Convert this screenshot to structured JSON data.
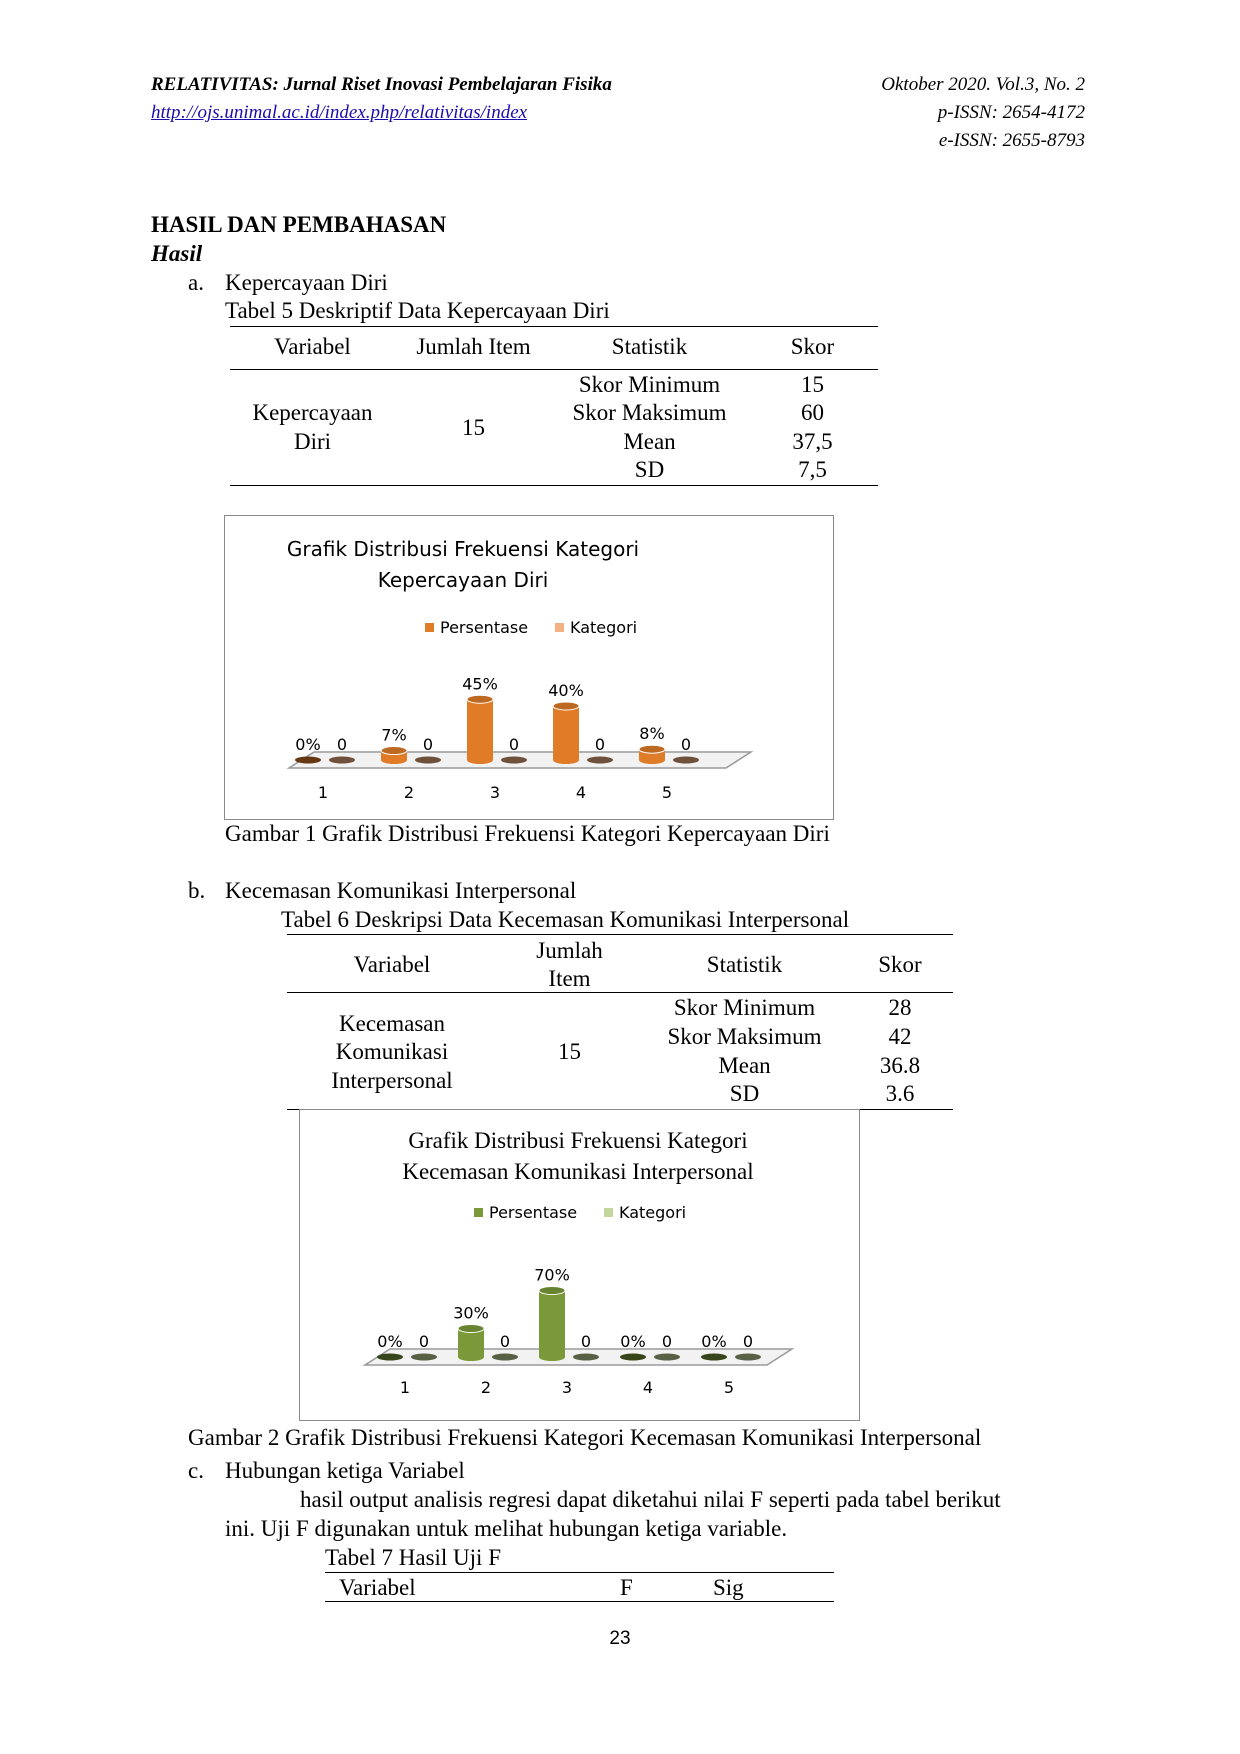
{
  "header": {
    "journal": "RELATIVITAS: Jurnal Riset Inovasi Pembelajaran Fisika",
    "url": "http://ojs.unimal.ac.id/index.php/relativitas/index",
    "issue": "Oktober 2020. Vol.3, No. 2",
    "pissn": "p-ISSN: 2654-4172",
    "eissn": "e-ISSN: 2655-8793"
  },
  "section": {
    "title": "HASIL DAN PEMBAHASAN",
    "subtitle": "Hasil"
  },
  "a": {
    "marker": "a.",
    "heading": "Kepercayaan Diri",
    "table_title": "Tabel 5 Deskriptif Data Kepercayaan Diri",
    "columns": [
      "Variabel",
      "Jumlah Item",
      "Statistik",
      "Skor"
    ],
    "variable_lines": [
      "Kepercayaan",
      "Diri"
    ],
    "items": "15",
    "stats": [
      "Skor Minimum",
      "Skor Maksimum",
      "Mean",
      "SD"
    ],
    "scores": [
      "15",
      "60",
      "37,5",
      "7,5"
    ],
    "caption": "Gambar 1 Grafik Distribusi Frekuensi Kategori Kepercayaan Diri"
  },
  "b": {
    "marker": "b.",
    "heading": "Kecemasan Komunikasi Interpersonal",
    "table_title": "Tabel 6 Deskripsi Data Kecemasan Komunikasi Interpersonal",
    "columns": [
      "Variabel",
      "Jumlah",
      "Item",
      "Statistik",
      "Skor"
    ],
    "variable_lines": [
      "Kecemasan",
      "Komunikasi",
      "Interpersonal"
    ],
    "items": "15",
    "stats": [
      "Skor Minimum",
      "Skor Maksimum",
      "Mean",
      "SD"
    ],
    "scores": [
      "28",
      "42",
      "36.8",
      "3.6"
    ],
    "caption": "Gambar 2 Grafik Distribusi Frekuensi Kategori Kecemasan Komunikasi Interpersonal"
  },
  "c": {
    "marker": "c.",
    "heading": "Hubungan ketiga Variabel",
    "para_line1": "hasil output analisis regresi dapat diketahui nilai F seperti pada tabel  berikut",
    "para_line2": "ini. Uji F digunakan untuk melihat hubungan ketiga variable.",
    "table_title": "Tabel 7 Hasil Uji F",
    "columns": [
      "Variabel",
      "F",
      "Sig"
    ]
  },
  "page_number": "23",
  "chart_data": [
    {
      "type": "bar",
      "title": [
        "Grafik Distribusi Frekuensi Kategori",
        "Kepercayaan Diri"
      ],
      "categories": [
        "1",
        "2",
        "3",
        "4",
        "5"
      ],
      "series": [
        {
          "name": "Persentase",
          "values": [
            0,
            7,
            45,
            40,
            8
          ],
          "labels": [
            "0%",
            "7%",
            "45%",
            "40%",
            "8%"
          ],
          "color": "#e07b28"
        },
        {
          "name": "Kategori",
          "values": [
            0,
            0,
            0,
            0,
            0
          ],
          "labels": [
            "0",
            "0",
            "0",
            "0",
            "0"
          ],
          "color": "#f4b183"
        }
      ],
      "legend": "top",
      "style": "3d-cylinder"
    },
    {
      "type": "bar",
      "title": [
        "Grafik Distribusi Frekuensi Kategori",
        "Kecemasan Komunikasi Interpersonal"
      ],
      "categories": [
        "1",
        "2",
        "3",
        "4",
        "5"
      ],
      "series": [
        {
          "name": "Persentase",
          "values": [
            0,
            30,
            70,
            0,
            0
          ],
          "labels": [
            "0%",
            "30%",
            "70%",
            "0%",
            "0%"
          ],
          "color": "#7a9a3a"
        },
        {
          "name": "Kategori",
          "values": [
            0,
            0,
            0,
            0,
            0
          ],
          "labels": [
            "0",
            "0",
            "0",
            "0",
            "0"
          ],
          "color": "#c3d69b"
        }
      ],
      "legend": "top",
      "style": "3d-cylinder"
    }
  ]
}
